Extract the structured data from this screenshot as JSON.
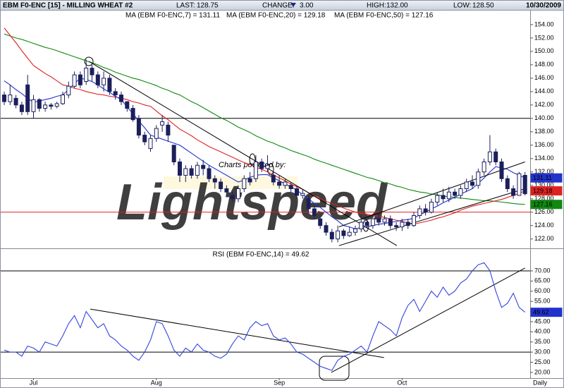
{
  "header": {
    "last_label": "LAST:",
    "last": "128.75",
    "change_label": "CHANGE:",
    "change": "3.00",
    "high_label": "HIGH:",
    "high": "132.00",
    "low_label": "LOW:",
    "low": "128.50",
    "date": "10/30/2009"
  },
  "chart_data": [
    {
      "type": "candlestick",
      "title": "EBM F0-ENC [15] - MILLING WHEAT #2",
      "watermark": {
        "caption": "Charts powered by:",
        "logo": "Lightspeed"
      },
      "x_label": "Daily",
      "categories": [
        null,
        null,
        null,
        null,
        null,
        "Jul",
        null,
        null,
        null,
        null,
        null,
        null,
        null,
        null,
        null,
        null,
        null,
        null,
        null,
        null,
        null,
        null,
        null,
        null,
        null,
        null,
        "Aug",
        null,
        null,
        null,
        null,
        null,
        null,
        null,
        null,
        null,
        null,
        null,
        null,
        null,
        null,
        null,
        null,
        null,
        null,
        null,
        null,
        "Sep",
        null,
        null,
        null,
        null,
        null,
        null,
        null,
        null,
        null,
        null,
        null,
        null,
        null,
        null,
        null,
        null,
        null,
        null,
        null,
        null,
        "Oct",
        null,
        null,
        null,
        null,
        null,
        null,
        null,
        null,
        null,
        null,
        null,
        null,
        null,
        null,
        null,
        null,
        null,
        null,
        null,
        null,
        null
      ],
      "open": [
        143.5,
        142.5,
        143,
        142,
        145,
        141,
        142.8,
        141.5,
        142,
        141.8,
        142.2,
        143.5,
        144.8,
        146.5,
        145.5,
        147.5,
        146.5,
        145,
        146,
        144,
        143.5,
        142.5,
        141.5,
        140,
        137.5,
        135.5,
        137,
        139,
        139,
        136,
        133.5,
        131.5,
        132.5,
        131.5,
        133,
        132.5,
        131,
        130.5,
        129.5,
        128.5,
        128,
        129.5,
        131,
        131,
        133.5,
        132.5,
        131.5,
        130.5,
        130,
        130,
        129.5,
        128.5,
        128,
        126.5,
        125,
        124,
        123,
        122,
        123.2,
        122.5,
        123,
        123.5,
        124.5,
        124,
        125,
        124.5,
        125,
        124,
        123.8,
        124.5,
        124,
        125.5,
        126.5,
        126,
        127.5,
        128.5,
        128,
        129,
        128.5,
        129.5,
        130.5,
        130,
        132,
        133.5,
        135,
        133.5,
        131,
        129.5,
        128.5,
        131.5
      ],
      "high": [
        144,
        145,
        143.5,
        142.5,
        146.5,
        143.5,
        143,
        142.5,
        142.3,
        142.5,
        144,
        145.5,
        147,
        147,
        148.8,
        148,
        147,
        147,
        146.5,
        144.5,
        144,
        142.5,
        142,
        140.5,
        138,
        137.5,
        139,
        140.5,
        139.5,
        136,
        134,
        133,
        133,
        133.5,
        133.8,
        133,
        131.5,
        131,
        130,
        129,
        130,
        131.5,
        132,
        134.5,
        134,
        134.5,
        132,
        131.5,
        131,
        130.5,
        130,
        129.5,
        128.5,
        127,
        125.5,
        124.5,
        123.5,
        124,
        123.5,
        123.8,
        124,
        125.5,
        125,
        125.5,
        125.8,
        125.5,
        125.5,
        124.5,
        125,
        125,
        126,
        127,
        127.2,
        128,
        129,
        129.5,
        129.8,
        129.5,
        130,
        131,
        131.5,
        132.5,
        134,
        137.5,
        135.5,
        134,
        131.5,
        130,
        132,
        132
      ],
      "low": [
        142,
        142,
        141.5,
        140.5,
        140.5,
        140,
        141,
        141,
        141.3,
        141.5,
        142,
        143,
        144.5,
        144.5,
        145,
        145.5,
        144.5,
        144,
        143.5,
        142.8,
        142,
        141,
        139.5,
        137,
        136,
        135,
        136.5,
        138,
        136.5,
        133,
        130.5,
        130.5,
        131,
        131,
        131.5,
        130.5,
        129.5,
        129,
        128.5,
        127.5,
        127.5,
        129,
        130,
        130.5,
        132,
        132,
        130,
        129.5,
        129.5,
        129,
        128,
        128,
        126,
        125,
        123.5,
        122.5,
        121.5,
        121.5,
        122,
        122.3,
        122.5,
        123,
        123.5,
        123.5,
        124,
        124,
        123.5,
        123.2,
        123.2,
        123.5,
        123.8,
        125,
        125.5,
        125.8,
        127,
        127.5,
        127.5,
        128,
        128,
        129,
        129.5,
        129.5,
        131.5,
        133,
        133,
        130.5,
        129,
        128,
        128.5,
        128.5
      ],
      "close": [
        142.5,
        143.5,
        142,
        141,
        141,
        142.8,
        141.5,
        142,
        141.8,
        142.2,
        143.5,
        144.8,
        146.5,
        145,
        147.5,
        146.5,
        145,
        146,
        144,
        143.5,
        142.5,
        141.5,
        139.8,
        137.5,
        136.5,
        137,
        138.5,
        139.5,
        137.5,
        133.5,
        131.5,
        132.5,
        131.5,
        133,
        132.5,
        131,
        130.5,
        129.5,
        129,
        128,
        129.5,
        131,
        130.5,
        133.5,
        132.5,
        133,
        130.5,
        130,
        130.5,
        129.5,
        128.5,
        128.8,
        126.5,
        125.5,
        124,
        123,
        122,
        123.2,
        122.5,
        123,
        123.5,
        124.5,
        124,
        125,
        124.5,
        125,
        124,
        123.8,
        124.5,
        124,
        125.5,
        126.5,
        126,
        127.5,
        128.5,
        128,
        129,
        128.5,
        129.5,
        130.5,
        130,
        132,
        133.5,
        135,
        133.5,
        131,
        129.5,
        128.5,
        131.75,
        128.75
      ],
      "candle_color": "#1c1f5c",
      "series": [
        {
          "name": "MA (EBM F0-ENC,50) = 127.16",
          "color": "#118811",
          "last_label": {
            "value": 127.16,
            "label": "127.16"
          },
          "values": [
            152.6,
            152.3,
            152.0,
            151.8,
            151.5,
            151.2,
            150.9,
            150.6,
            150.4,
            150.1,
            149.8,
            149.5,
            149.2,
            148.9,
            148.6,
            148.3,
            148.0,
            147.6,
            147.3,
            146.9,
            146.6,
            146.3,
            146.0,
            145.8,
            145.5,
            145.2,
            144.9,
            144.5,
            144.2,
            143.8,
            143.5,
            143.0,
            142.5,
            142.1,
            141.6,
            141.1,
            140.6,
            140.1,
            139.7,
            139.2,
            138.7,
            138.3,
            137.9,
            137.4,
            137.0,
            136.6,
            136.3,
            135.9,
            135.6,
            135.2,
            134.9,
            134.6,
            134.3,
            133.9,
            133.6,
            133.3,
            133.0,
            132.7,
            132.4,
            132.1,
            131.8,
            131.5,
            131.2,
            131.0,
            130.7,
            130.4,
            130.2,
            129.9,
            129.7,
            129.4,
            129.2,
            129.0,
            128.9,
            128.7,
            128.6,
            128.4,
            128.3,
            128.2,
            128.1,
            128.0,
            127.9,
            127.8,
            127.7,
            127.7,
            127.6,
            127.5,
            127.4,
            127.3,
            127.2,
            127.16
          ]
        },
        {
          "name": "MA (EBM F0-ENC,20) = 129.18",
          "color": "#dd2222",
          "last_label": {
            "value": 129.18,
            "label": "129.18"
          },
          "values": [
            153.5,
            152.4,
            151.3,
            150.1,
            149.0,
            147.9,
            147.3,
            146.7,
            146.2,
            145.6,
            145.0,
            144.8,
            144.5,
            144.3,
            144.0,
            143.8,
            143.6,
            143.5,
            143.3,
            143.2,
            143.0,
            142.8,
            142.5,
            142.3,
            142.0,
            141.8,
            141.1,
            140.4,
            139.8,
            139.1,
            138.4,
            137.9,
            137.4,
            136.8,
            136.3,
            135.8,
            135.4,
            135.0,
            134.6,
            134.2,
            133.8,
            133.4,
            133.1,
            132.7,
            132.4,
            132.0,
            131.6,
            131.1,
            130.7,
            130.2,
            129.8,
            129.4,
            128.9,
            128.5,
            128.0,
            127.6,
            127.3,
            127.0,
            126.6,
            126.3,
            126.0,
            125.8,
            125.7,
            125.5,
            125.4,
            125.2,
            125.0,
            124.8,
            124.6,
            124.4,
            124.2,
            124.4,
            124.6,
            124.8,
            125.1,
            125.3,
            125.6,
            125.9,
            126.3,
            126.6,
            126.9,
            127.1,
            127.3,
            127.5,
            127.7,
            127.9,
            128.2,
            128.5,
            128.8,
            129.18
          ]
        },
        {
          "name": "MA (EBM F0-ENC,7) = 131.11",
          "color": "#2233cc",
          "last_label": {
            "value": 131.11,
            "label": "131.11"
          },
          "values": [
            145.6,
            145.0,
            144.3,
            143.7,
            143.0,
            142.4,
            142.6,
            142.8,
            143.0,
            143.3,
            143.5,
            144.3,
            145.2,
            146.0,
            145.8,
            145.5,
            145.0,
            144.4,
            143.9,
            143.3,
            142.8,
            141.7,
            140.7,
            139.6,
            138.6,
            137.5,
            137.2,
            136.9,
            136.6,
            136.3,
            136.0,
            135.4,
            134.8,
            134.2,
            133.6,
            133.0,
            132.5,
            132.0,
            131.5,
            131.0,
            130.5,
            130.8,
            131.2,
            131.5,
            131.6,
            131.6,
            131.1,
            130.7,
            130.2,
            129.8,
            129.3,
            128.6,
            128.0,
            127.3,
            126.7,
            126.0,
            125.3,
            124.7,
            124.0,
            123.8,
            123.5,
            123.7,
            123.8,
            124.0,
            124.2,
            124.3,
            124.5,
            124.6,
            124.8,
            124.9,
            125.1,
            125.6,
            126.0,
            126.5,
            126.9,
            127.4,
            127.8,
            128.2,
            128.7,
            129.1,
            129.5,
            130.3,
            131.1,
            132.0,
            132.8,
            132.6,
            132.4,
            131.9,
            131.5,
            131.11
          ]
        }
      ],
      "hlines": [
        {
          "value": 140,
          "color": "#000000"
        },
        {
          "value": 126,
          "color": "#dd2222"
        }
      ],
      "trendlines": [
        {
          "x": [
            14.5,
            67.1
          ],
          "y": [
            148.5,
            121
          ]
        },
        {
          "x": [
            57.2,
            89
          ],
          "y": [
            121,
            129.5
          ]
        },
        {
          "x": [
            57.2,
            89
          ],
          "y": [
            123.8,
            133.5
          ]
        }
      ],
      "ylim": [
        120.6,
        156.2
      ],
      "yticks": [
        {
          "value": 122,
          "label": "122.00"
        },
        {
          "value": 124,
          "label": "124.00"
        },
        {
          "value": 126,
          "label": "126.00"
        },
        {
          "value": 128,
          "label": "128.00"
        },
        {
          "value": 130,
          "label": "130.00"
        },
        {
          "value": 132,
          "label": "132.00"
        },
        {
          "value": 134,
          "label": "134.00"
        },
        {
          "value": 136,
          "label": "136.00"
        },
        {
          "value": 138,
          "label": "138.00"
        },
        {
          "value": 140,
          "label": "140.00"
        },
        {
          "value": 142,
          "label": "142.00"
        },
        {
          "value": 144,
          "label": "144.00"
        },
        {
          "value": 146,
          "label": "146.00"
        },
        {
          "value": 148,
          "label": "148.00"
        },
        {
          "value": 150,
          "label": "150.00"
        },
        {
          "value": 152,
          "label": "152.00"
        },
        {
          "value": 154,
          "label": "154.00"
        }
      ]
    },
    {
      "type": "line",
      "title": "RSI (EBM F0-ENC,14) = 49.62",
      "color": "#3344dd",
      "last_label": {
        "value": 49.62,
        "label": "49.62"
      },
      "values": [
        31,
        30,
        30,
        28,
        33,
        32,
        30,
        35,
        34,
        33,
        38,
        44,
        48,
        42,
        50,
        46,
        42,
        44,
        38,
        36,
        33,
        31,
        28,
        26,
        30,
        36,
        45,
        44,
        38,
        31,
        28,
        32,
        30,
        34,
        31,
        30,
        28,
        27,
        29,
        34,
        38,
        36,
        42,
        45,
        43,
        44,
        38,
        36,
        37,
        34,
        30,
        29,
        27,
        25,
        23,
        22,
        21,
        26,
        28,
        29,
        31,
        33,
        30,
        38,
        45,
        43,
        41,
        38,
        47,
        53,
        56,
        50,
        55,
        60,
        57,
        62,
        58,
        60,
        64,
        66,
        70,
        73,
        74,
        70,
        60,
        52,
        54,
        59,
        52,
        49.62
      ],
      "hlines": [
        {
          "value": 70,
          "color": "#000000"
        },
        {
          "value": 30,
          "color": "#000000"
        }
      ],
      "trendlines": [
        {
          "x": [
            14.7,
            64.9
          ],
          "y": [
            51.2,
            27.3
          ]
        },
        {
          "x": [
            55.9,
            89
          ],
          "y": [
            20,
            71.4
          ]
        }
      ],
      "ylim": [
        17.2,
        80.4
      ],
      "yticks": [
        {
          "value": 20,
          "label": "20.00"
        },
        {
          "value": 25,
          "label": "25.00"
        },
        {
          "value": 30,
          "label": "30.00"
        },
        {
          "value": 35,
          "label": "35.00"
        },
        {
          "value": 40,
          "label": "40.00"
        },
        {
          "value": 45,
          "label": "45.00"
        },
        {
          "value": 50,
          "label": "50.00"
        },
        {
          "value": 55,
          "label": "55.00"
        },
        {
          "value": 60,
          "label": "60.00"
        },
        {
          "value": 65,
          "label": "65.00"
        },
        {
          "value": 70,
          "label": "70.00"
        }
      ]
    }
  ]
}
